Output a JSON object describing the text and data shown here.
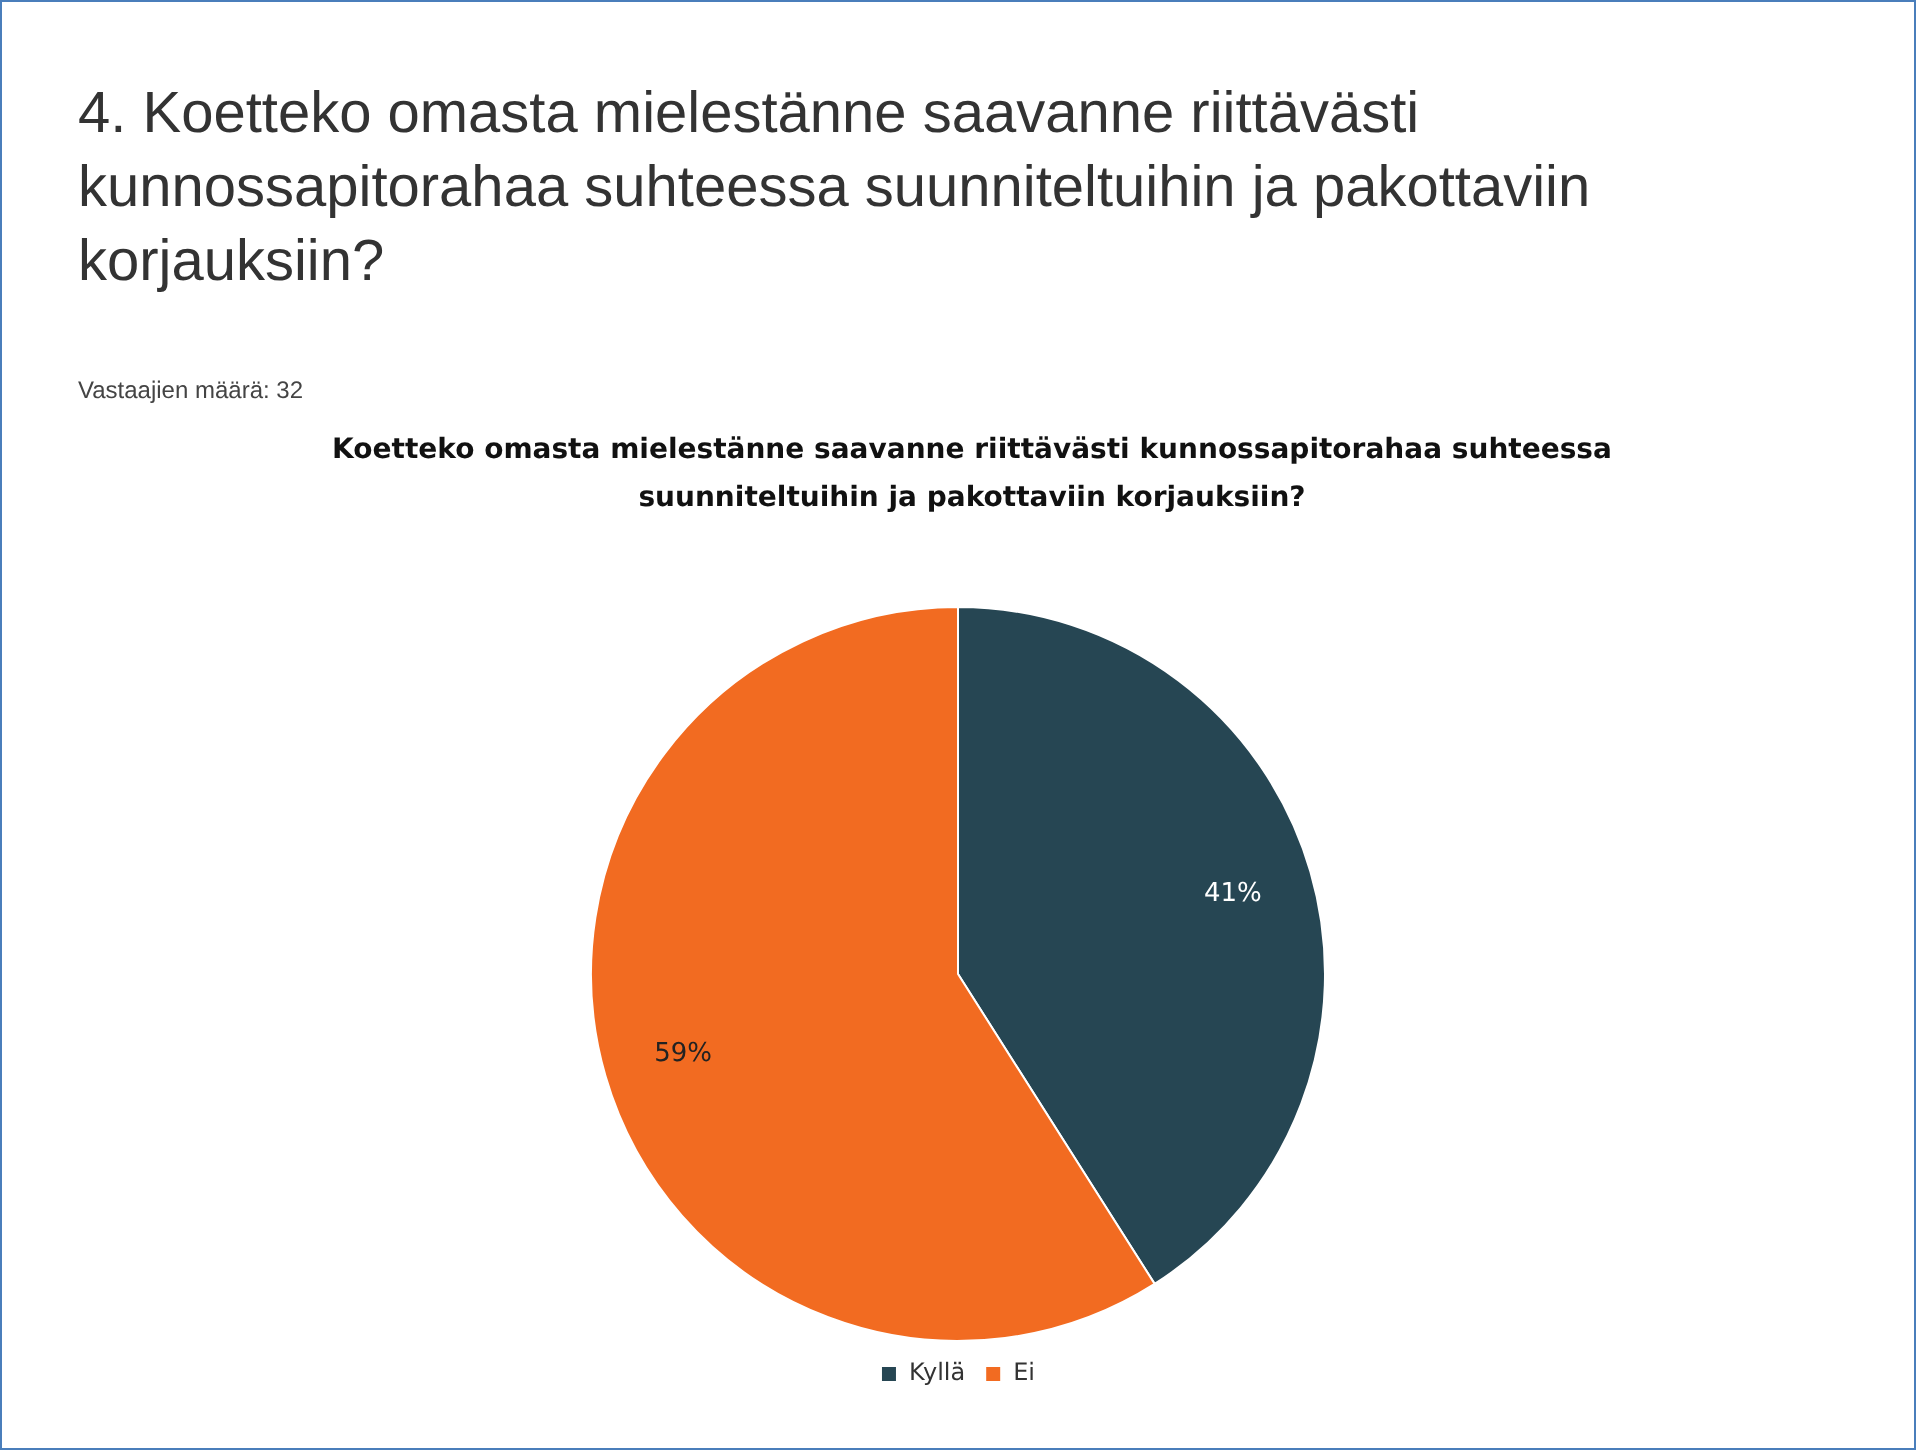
{
  "chart_data": {
    "type": "pie",
    "title": "4. Koetteko omasta mielestänne saavanne riittävästi kunnossapitorahaa suhteessa suunniteltuihin ja pakottaviin korjauksiin?",
    "subtitle": "Vastaajien määrä: 32",
    "annotations": [
      "Koetteko omasta mielestänne saavanne riittävästi kunnossapitorahaa suhteessa suunniteltuihin ja pakottaviin korjauksiin?"
    ],
    "categories": [
      "Kyllä",
      "Ei"
    ],
    "values": [
      41,
      59
    ],
    "colors": [
      "#264653",
      "#f26b21"
    ],
    "value_labels": [
      "41%",
      "59%"
    ],
    "legend": "bottom"
  }
}
